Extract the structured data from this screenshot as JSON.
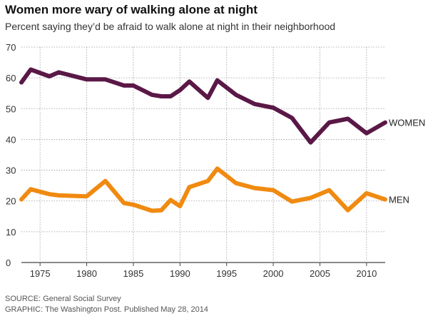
{
  "colors": {
    "women": "#5a1846",
    "men": "#f08a10",
    "grid": "#9a9a9a"
  },
  "chart_data": {
    "type": "line",
    "title": "Women more wary of walking alone at night",
    "subtitle": "Percent saying they’d be afraid to walk alone at night in their neighborhood",
    "xlabel": "",
    "ylabel": "",
    "xlim": [
      1973,
      2012
    ],
    "ylim": [
      0,
      70
    ],
    "yticks": [
      0,
      10,
      20,
      30,
      40,
      50,
      60,
      70
    ],
    "xticks": [
      1975,
      1980,
      1985,
      1990,
      1995,
      2000,
      2005,
      2010
    ],
    "grid": true,
    "series": [
      {
        "name": "WOMEN",
        "x": [
          1973,
          1974,
          1976,
          1977,
          1980,
          1982,
          1984,
          1985,
          1987,
          1988,
          1989,
          1990,
          1991,
          1993,
          1994,
          1996,
          1998,
          2000,
          2002,
          2004,
          2006,
          2008,
          2010,
          2012
        ],
        "y": [
          58.5,
          62.7,
          60.5,
          61.8,
          59.5,
          59.5,
          57.5,
          57.5,
          54.5,
          54,
          54,
          56,
          58.8,
          53.5,
          59.2,
          54.5,
          51.5,
          50.3,
          47,
          39,
          45.5,
          46.7,
          42,
          45.5
        ]
      },
      {
        "name": "MEN",
        "x": [
          1973,
          1974,
          1976,
          1977,
          1980,
          1982,
          1984,
          1985,
          1987,
          1988,
          1989,
          1990,
          1991,
          1993,
          1994,
          1996,
          1998,
          2000,
          2002,
          2004,
          2006,
          2008,
          2010,
          2012
        ],
        "y": [
          20.5,
          23.8,
          22.2,
          21.8,
          21.5,
          26.5,
          19.3,
          18.8,
          16.8,
          17,
          20.3,
          18.3,
          24.5,
          26.5,
          30.5,
          25.8,
          24.2,
          23.5,
          19.8,
          21,
          23.5,
          17,
          22.5,
          20.5
        ]
      }
    ]
  },
  "source": {
    "line1": "SOURCE: General Social Survey",
    "line2": "GRAPHIC: The Washington Post. Published May 28, 2014"
  }
}
